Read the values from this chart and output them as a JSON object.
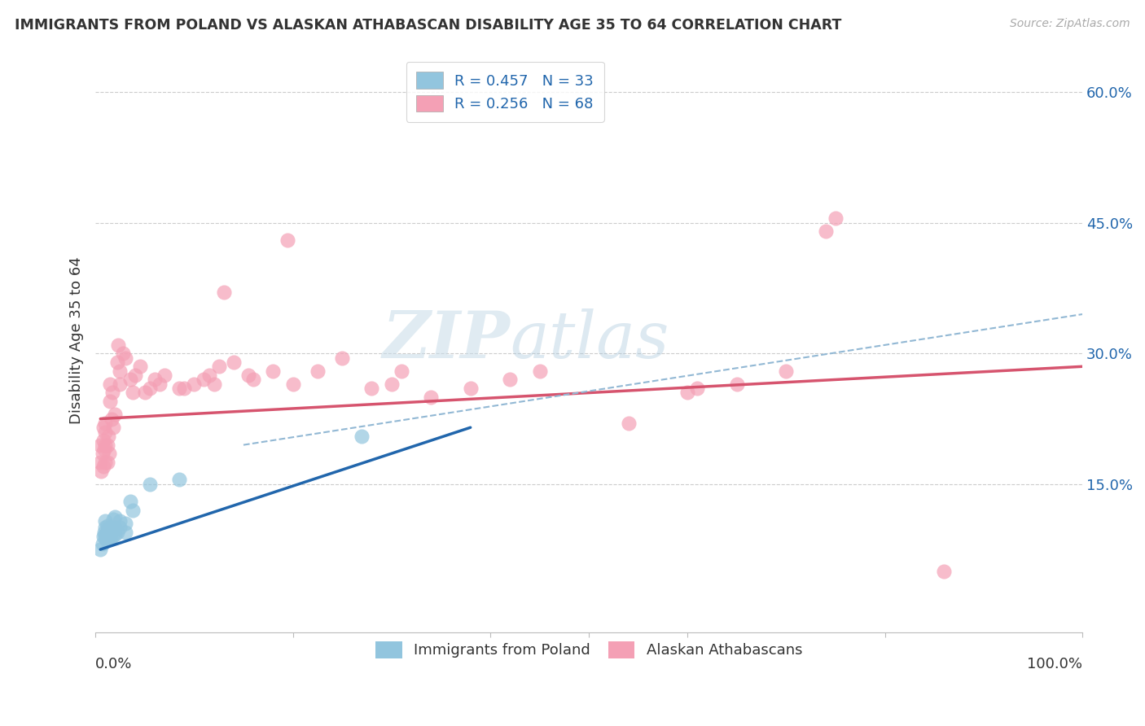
{
  "title": "IMMIGRANTS FROM POLAND VS ALASKAN ATHABASCAN DISABILITY AGE 35 TO 64 CORRELATION CHART",
  "source": "Source: ZipAtlas.com",
  "ylabel": "Disability Age 35 to 64",
  "color_blue": "#92c5de",
  "color_pink": "#f4a0b5",
  "line_blue": "#2166ac",
  "line_pink": "#d6546e",
  "line_dash_color": "#92b8d4",
  "watermark_zip": "ZIP",
  "watermark_atlas": "atlas",
  "xlim": [
    0.0,
    1.0
  ],
  "ylim": [
    -0.02,
    0.65
  ],
  "yticks": [
    0.15,
    0.3,
    0.45,
    0.6
  ],
  "ytick_labels": [
    "15.0%",
    "30.0%",
    "45.0%",
    "60.0%"
  ],
  "legend_items": [
    {
      "label": "R = 0.457   N = 33",
      "color": "#92c5de"
    },
    {
      "label": "R = 0.256   N = 68",
      "color": "#f4a0b5"
    }
  ],
  "bottom_legend": [
    "Immigrants from Poland",
    "Alaskan Athabascans"
  ],
  "blue_line_endpoints": [
    [
      0.005,
      0.075
    ],
    [
      0.38,
      0.215
    ]
  ],
  "pink_line_endpoints": [
    [
      0.005,
      0.225
    ],
    [
      1.0,
      0.285
    ]
  ],
  "dash_line_endpoints": [
    [
      0.15,
      0.195
    ],
    [
      1.0,
      0.345
    ]
  ],
  "blue_points": [
    [
      0.005,
      0.075
    ],
    [
      0.007,
      0.082
    ],
    [
      0.008,
      0.09
    ],
    [
      0.009,
      0.095
    ],
    [
      0.01,
      0.088
    ],
    [
      0.01,
      0.092
    ],
    [
      0.01,
      0.1
    ],
    [
      0.01,
      0.108
    ],
    [
      0.011,
      0.085
    ],
    [
      0.012,
      0.095
    ],
    [
      0.012,
      0.102
    ],
    [
      0.013,
      0.09
    ],
    [
      0.013,
      0.098
    ],
    [
      0.014,
      0.092
    ],
    [
      0.015,
      0.087
    ],
    [
      0.015,
      0.1
    ],
    [
      0.016,
      0.095
    ],
    [
      0.017,
      0.09
    ],
    [
      0.018,
      0.098
    ],
    [
      0.018,
      0.11
    ],
    [
      0.02,
      0.092
    ],
    [
      0.02,
      0.1
    ],
    [
      0.02,
      0.112
    ],
    [
      0.022,
      0.095
    ],
    [
      0.025,
      0.1
    ],
    [
      0.025,
      0.108
    ],
    [
      0.03,
      0.095
    ],
    [
      0.03,
      0.105
    ],
    [
      0.035,
      0.13
    ],
    [
      0.038,
      0.12
    ],
    [
      0.055,
      0.15
    ],
    [
      0.085,
      0.155
    ],
    [
      0.27,
      0.205
    ]
  ],
  "pink_points": [
    [
      0.005,
      0.175
    ],
    [
      0.005,
      0.195
    ],
    [
      0.006,
      0.165
    ],
    [
      0.007,
      0.185
    ],
    [
      0.008,
      0.17
    ],
    [
      0.008,
      0.2
    ],
    [
      0.008,
      0.215
    ],
    [
      0.009,
      0.19
    ],
    [
      0.01,
      0.175
    ],
    [
      0.01,
      0.195
    ],
    [
      0.01,
      0.21
    ],
    [
      0.01,
      0.22
    ],
    [
      0.012,
      0.175
    ],
    [
      0.012,
      0.195
    ],
    [
      0.013,
      0.205
    ],
    [
      0.014,
      0.185
    ],
    [
      0.015,
      0.245
    ],
    [
      0.015,
      0.265
    ],
    [
      0.016,
      0.225
    ],
    [
      0.017,
      0.255
    ],
    [
      0.018,
      0.215
    ],
    [
      0.02,
      0.23
    ],
    [
      0.022,
      0.29
    ],
    [
      0.023,
      0.31
    ],
    [
      0.025,
      0.265
    ],
    [
      0.025,
      0.28
    ],
    [
      0.028,
      0.3
    ],
    [
      0.03,
      0.295
    ],
    [
      0.035,
      0.27
    ],
    [
      0.038,
      0.255
    ],
    [
      0.04,
      0.275
    ],
    [
      0.045,
      0.285
    ],
    [
      0.05,
      0.255
    ],
    [
      0.055,
      0.26
    ],
    [
      0.06,
      0.27
    ],
    [
      0.065,
      0.265
    ],
    [
      0.07,
      0.275
    ],
    [
      0.085,
      0.26
    ],
    [
      0.09,
      0.26
    ],
    [
      0.1,
      0.265
    ],
    [
      0.11,
      0.27
    ],
    [
      0.115,
      0.275
    ],
    [
      0.12,
      0.265
    ],
    [
      0.125,
      0.285
    ],
    [
      0.13,
      0.37
    ],
    [
      0.14,
      0.29
    ],
    [
      0.155,
      0.275
    ],
    [
      0.16,
      0.27
    ],
    [
      0.18,
      0.28
    ],
    [
      0.195,
      0.43
    ],
    [
      0.2,
      0.265
    ],
    [
      0.225,
      0.28
    ],
    [
      0.25,
      0.295
    ],
    [
      0.28,
      0.26
    ],
    [
      0.3,
      0.265
    ],
    [
      0.31,
      0.28
    ],
    [
      0.34,
      0.25
    ],
    [
      0.38,
      0.26
    ],
    [
      0.42,
      0.27
    ],
    [
      0.45,
      0.28
    ],
    [
      0.54,
      0.22
    ],
    [
      0.6,
      0.255
    ],
    [
      0.61,
      0.26
    ],
    [
      0.65,
      0.265
    ],
    [
      0.7,
      0.28
    ],
    [
      0.74,
      0.44
    ],
    [
      0.75,
      0.455
    ],
    [
      0.86,
      0.05
    ]
  ]
}
